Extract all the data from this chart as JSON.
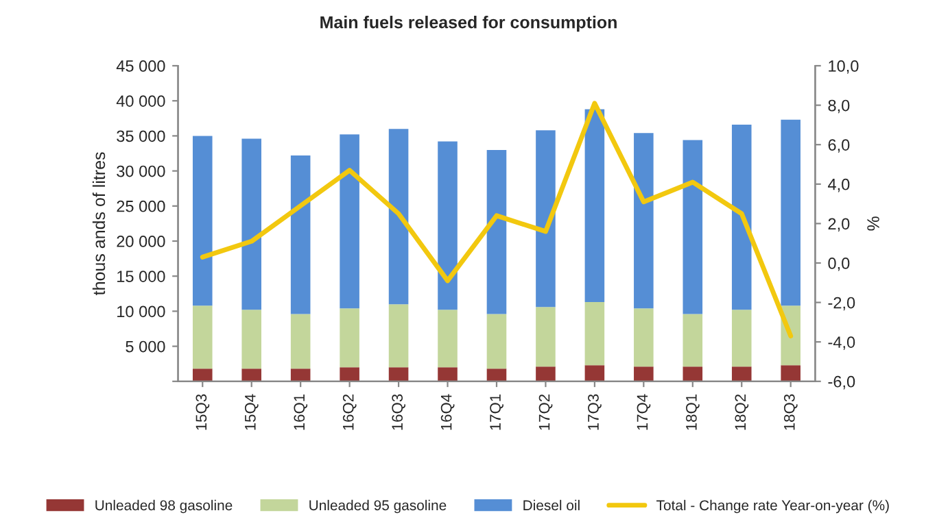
{
  "chart_data": {
    "type": "bar",
    "title": "Main fuels released for consumption",
    "ylabel": "thous ands of litres",
    "y2label": "%",
    "categories": [
      "15Q3",
      "15Q4",
      "16Q1",
      "16Q2",
      "16Q3",
      "16Q4",
      "17Q1",
      "17Q2",
      "17Q3",
      "17Q4",
      "18Q1",
      "18Q2",
      "18Q3"
    ],
    "stacked": true,
    "series": [
      {
        "name": "Unleaded 98 gasoline",
        "color": "#953735",
        "values": [
          1800,
          1800,
          1800,
          2000,
          2000,
          2000,
          1800,
          2100,
          2300,
          2100,
          2100,
          2100,
          2300
        ]
      },
      {
        "name": "Unleaded 95 gasoline",
        "color": "#c3d69b",
        "values": [
          9000,
          8400,
          7800,
          8400,
          9000,
          8200,
          7800,
          8500,
          9000,
          8300,
          7500,
          8100,
          8500
        ]
      },
      {
        "name": "Diesel oil",
        "color": "#558ed5",
        "values": [
          24200,
          24400,
          22600,
          24800,
          25000,
          24000,
          23400,
          25200,
          27500,
          25000,
          24800,
          26400,
          26500
        ]
      },
      {
        "name": "Total - Change rate Year-on-year (%)",
        "type": "line",
        "axis": "y2",
        "color": "#f2c80f",
        "values": [
          0.3,
          1.1,
          2.9,
          4.7,
          2.5,
          -0.9,
          2.4,
          1.6,
          8.1,
          3.1,
          4.1,
          2.5,
          -3.7
        ]
      }
    ],
    "ylim": [
      0,
      45000
    ],
    "yticks": [
      {
        "value": 0,
        "label": null
      },
      {
        "value": 5000,
        "label": "5 000"
      },
      {
        "value": 10000,
        "label": "10 000"
      },
      {
        "value": 15000,
        "label": "15 000"
      },
      {
        "value": 20000,
        "label": "20 000"
      },
      {
        "value": 25000,
        "label": "25 000"
      },
      {
        "value": 30000,
        "label": "30 000"
      },
      {
        "value": 35000,
        "label": "35 000"
      },
      {
        "value": 40000,
        "label": "40 000"
      },
      {
        "value": 45000,
        "label": "45 000"
      }
    ],
    "y2lim": [
      -6,
      10
    ],
    "y2ticks": [
      {
        "value": -6,
        "label": "-6,0"
      },
      {
        "value": -4,
        "label": "-4,0"
      },
      {
        "value": -2,
        "label": "-2,0"
      },
      {
        "value": 0,
        "label": "0,0"
      },
      {
        "value": 2,
        "label": "2,0"
      },
      {
        "value": 4,
        "label": "4,0"
      },
      {
        "value": 6,
        "label": "6,0"
      },
      {
        "value": 8,
        "label": "8,0"
      },
      {
        "value": 10,
        "label": "10,0"
      }
    ],
    "legend": "bottom",
    "grid": false,
    "marker": "none"
  }
}
